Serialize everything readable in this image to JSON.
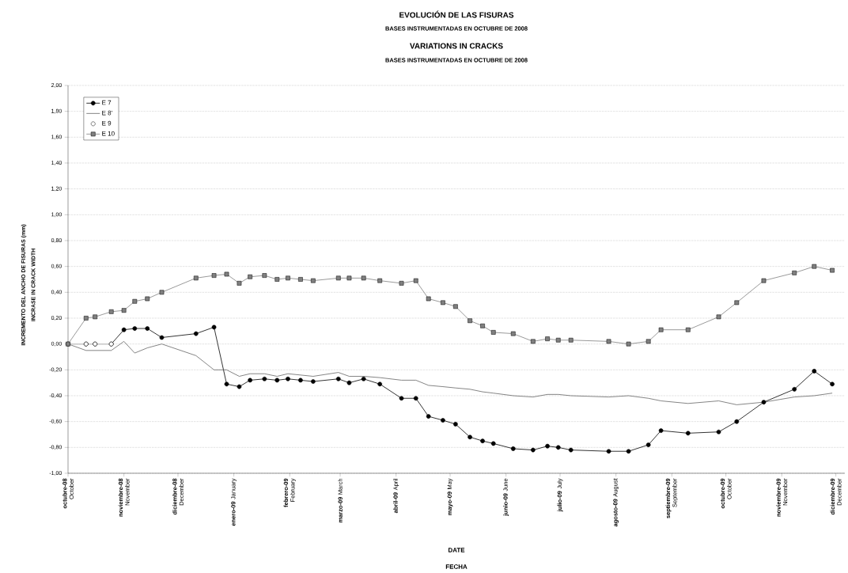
{
  "chart_data": {
    "type": "line",
    "title": "EVOLUCIÓN DE LAS FISURAS",
    "subtitle": "BASES INSTRUMENTADAS EN OCTUBRE DE 2008",
    "annotations": [
      "VARIATIONS IN CRACKS",
      "BASES INSTRUMENTADAS EN OCTUBRE DE 2008",
      "INCRASE IN CRACK WIDTH",
      "FECHA"
    ],
    "xlabel": "DATE",
    "ylabel": "INCREMENTO DEL ANCHO DE FISURAS (mm)",
    "x": [
      "2008-10-01",
      "2008-10-11",
      "2008-10-16",
      "2008-10-25",
      "2008-11-01",
      "2008-11-07",
      "2008-11-14",
      "2008-11-22",
      "2008-12-11",
      "2008-12-21",
      "2008-12-28",
      "2009-01-04",
      "2009-01-10",
      "2009-01-18",
      "2009-01-25",
      "2009-01-31",
      "2009-02-07",
      "2009-02-14",
      "2009-02-28",
      "2009-03-06",
      "2009-03-14",
      "2009-03-23",
      "2009-04-04",
      "2009-04-12",
      "2009-04-19",
      "2009-04-27",
      "2009-05-04",
      "2009-05-12",
      "2009-05-19",
      "2009-05-25",
      "2009-06-05",
      "2009-06-16",
      "2009-06-24",
      "2009-06-30",
      "2009-07-07",
      "2009-07-28",
      "2009-08-08",
      "2009-08-19",
      "2009-08-26",
      "2009-09-10",
      "2009-09-27",
      "2009-10-07",
      "2009-10-22",
      "2009-11-08",
      "2009-11-19",
      "2009-11-29"
    ],
    "series": [
      {
        "name": "E 7",
        "color": "#000000",
        "marker": "circle",
        "values": [
          0,
          0,
          0,
          0,
          0.11,
          0.12,
          0.12,
          0.05,
          0.08,
          0.13,
          -0.31,
          -0.33,
          -0.28,
          -0.27,
          -0.28,
          -0.27,
          -0.28,
          -0.29,
          -0.27,
          -0.3,
          -0.27,
          -0.31,
          -0.42,
          -0.42,
          -0.56,
          -0.59,
          -0.62,
          -0.72,
          -0.75,
          -0.77,
          -0.81,
          -0.82,
          -0.79,
          -0.8,
          -0.82,
          -0.83,
          -0.83,
          -0.78,
          -0.67,
          -0.69,
          -0.68,
          -0.6,
          -0.45,
          -0.35,
          -0.21,
          -0.31
        ]
      },
      {
        "name": "E 8'",
        "color": "#666666",
        "marker": "none",
        "values": [
          0,
          -0.05,
          -0.05,
          -0.05,
          0.02,
          -0.07,
          -0.03,
          0.0,
          -0.09,
          -0.2,
          -0.2,
          -0.25,
          -0.23,
          -0.23,
          -0.25,
          -0.23,
          -0.24,
          -0.25,
          -0.22,
          -0.25,
          -0.25,
          -0.26,
          -0.28,
          -0.28,
          -0.32,
          -0.33,
          -0.34,
          -0.35,
          -0.37,
          -0.38,
          -0.4,
          -0.41,
          -0.39,
          -0.39,
          -0.4,
          -0.41,
          -0.4,
          -0.42,
          -0.44,
          -0.46,
          -0.44,
          -0.47,
          -0.45,
          -0.41,
          -0.4,
          -0.38
        ]
      },
      {
        "name": "E 9",
        "color": "#ffffff",
        "marker": "circle",
        "values": [
          0,
          0,
          0,
          0,
          null,
          null,
          null,
          null,
          null,
          null,
          null,
          null,
          null,
          null,
          null,
          null,
          null,
          null,
          null,
          null,
          null,
          null,
          null,
          null,
          null,
          null,
          null,
          null,
          null,
          null,
          null,
          null,
          null,
          null,
          null,
          null,
          null,
          null,
          null,
          null,
          null,
          null,
          null,
          null,
          null,
          null
        ]
      },
      {
        "name": "E 10",
        "color": "#808080",
        "marker": "square",
        "values": [
          0,
          0.2,
          0.21,
          0.25,
          0.26,
          0.33,
          0.35,
          0.4,
          0.51,
          0.53,
          0.54,
          0.47,
          0.52,
          0.53,
          0.5,
          0.51,
          0.5,
          0.49,
          0.51,
          0.51,
          0.51,
          0.49,
          0.47,
          0.49,
          0.35,
          0.32,
          0.29,
          0.18,
          0.14,
          0.09,
          0.08,
          0.02,
          0.04,
          0.03,
          0.03,
          0.02,
          0.0,
          0.02,
          0.11,
          0.11,
          0.21,
          0.32,
          0.49,
          0.55,
          0.6,
          0.57
        ]
      }
    ],
    "xlim": [
      "2008-10-01",
      "2009-12-06"
    ],
    "xticks": [
      {
        "value": "2008-10-01",
        "label": "**octubre-08** October"
      },
      {
        "value": "2008-11-01",
        "label": "**noviembre-08** November"
      },
      {
        "value": "2008-12-01",
        "label": "**diciembre-08** December"
      },
      {
        "value": "2009-01-01",
        "label": "**enero-09** January"
      },
      {
        "value": "2009-02-01",
        "label": "**febrero-09** February"
      },
      {
        "value": "2009-03-01",
        "label": "**marzo-09** March"
      },
      {
        "value": "2009-04-01",
        "label": "**abril-09** April"
      },
      {
        "value": "2009-05-01",
        "label": "**mayo-09** May"
      },
      {
        "value": "2009-06-01",
        "label": "**junio-09** June"
      },
      {
        "value": "2009-07-01",
        "label": "**julio-09** July"
      },
      {
        "value": "2009-08-01",
        "label": "**agosto-09** August"
      },
      {
        "value": "2009-09-01",
        "label": "**septiembre-09** September"
      },
      {
        "value": "2009-10-01",
        "label": "**octubre-09** October"
      },
      {
        "value": "2009-11-01",
        "label": "**noviembre-09** November"
      },
      {
        "value": "2009-12-01",
        "label": "**diciembre-09** December"
      }
    ],
    "ylim": [
      -1,
      2
    ],
    "yticks": [
      {
        "value": -1,
        "label": "-1,00"
      },
      {
        "value": -0.8,
        "label": "-0,80"
      },
      {
        "value": -0.6,
        "label": "-0,60"
      },
      {
        "value": -0.4,
        "label": "-0,40"
      },
      {
        "value": -0.2,
        "label": "-0,20"
      },
      {
        "value": 0,
        "label": "0,00"
      },
      {
        "value": 0.2,
        "label": "0,20"
      },
      {
        "value": 0.4,
        "label": "0,40"
      },
      {
        "value": 0.6,
        "label": "0,60"
      },
      {
        "value": 0.8,
        "label": "0,80"
      },
      {
        "value": 1,
        "label": "1,00"
      },
      {
        "value": 1.2,
        "label": "1,20"
      },
      {
        "value": 1.4,
        "label": "1,40"
      },
      {
        "value": 1.6,
        "label": "1,60"
      },
      {
        "value": 1.8,
        "label": "1,80"
      },
      {
        "value": 2,
        "label": "2,00"
      }
    ],
    "grid": "y",
    "legend": "top left",
    "line_style": "solid"
  }
}
